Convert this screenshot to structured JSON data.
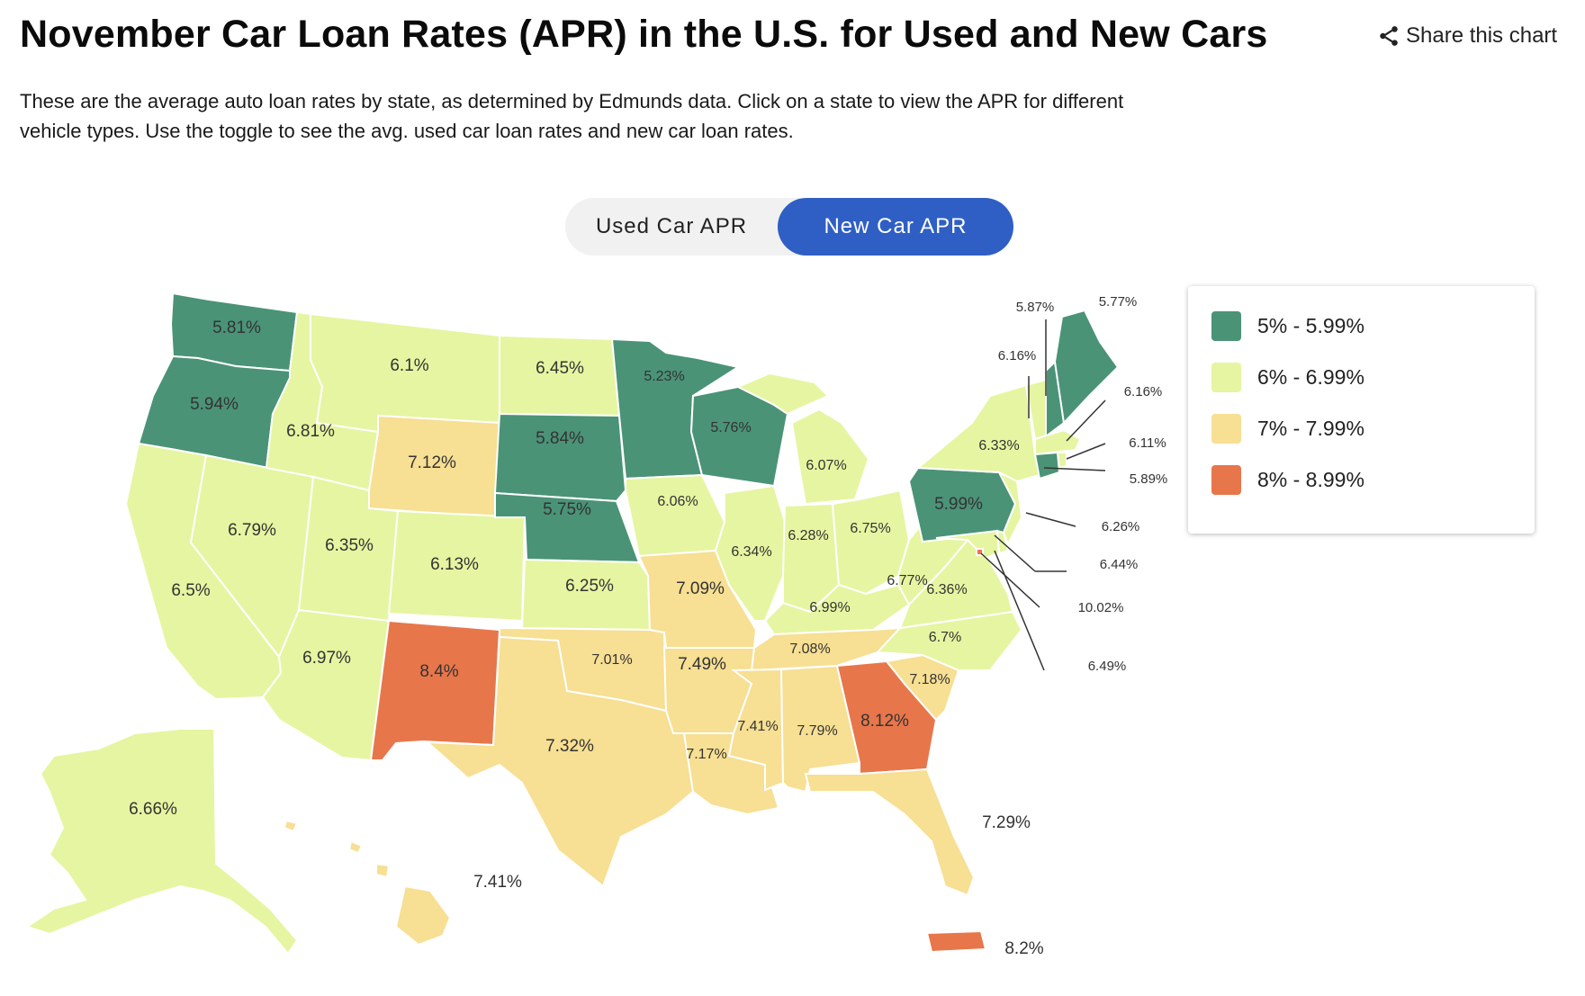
{
  "header": {
    "title": "November Car Loan Rates (APR) in the U.S. for Used and New Cars",
    "share_label": "Share this chart",
    "description": "These are the average auto loan rates by state, as determined by Edmunds data. Click on a state to view the APR for different vehicle types. Use the toggle to see the avg. used car loan rates and new car loan rates."
  },
  "toggle": {
    "used_label": "Used Car APR",
    "new_label": "New Car APR",
    "selected": "New Car APR"
  },
  "legend": {
    "items": [
      {
        "label": "5% - 5.99%",
        "color": "#4a9377"
      },
      {
        "label": "6% - 6.99%",
        "color": "#e6f5a1"
      },
      {
        "label": "7% - 7.99%",
        "color": "#f7df93"
      },
      {
        "label": "8% - 8.99%",
        "color": "#e8764b"
      }
    ]
  },
  "map_data": {
    "type": "choropleth",
    "region": "United States",
    "unit": "%",
    "rates": [
      {
        "state": "WA",
        "label": "5.81%",
        "value": 5.81
      },
      {
        "state": "OR",
        "label": "5.94%",
        "value": 5.94
      },
      {
        "state": "CA",
        "label": "6.5%",
        "value": 6.5
      },
      {
        "state": "NV",
        "label": "6.79%",
        "value": 6.79
      },
      {
        "state": "ID",
        "label": "6.81%",
        "value": 6.81
      },
      {
        "state": "MT",
        "label": "6.1%",
        "value": 6.1
      },
      {
        "state": "WY",
        "label": "7.12%",
        "value": 7.12
      },
      {
        "state": "UT",
        "label": "6.35%",
        "value": 6.35
      },
      {
        "state": "AZ",
        "label": "6.97%",
        "value": 6.97
      },
      {
        "state": "CO",
        "label": "6.13%",
        "value": 6.13
      },
      {
        "state": "NM",
        "label": "8.4%",
        "value": 8.4
      },
      {
        "state": "ND",
        "label": "6.45%",
        "value": 6.45
      },
      {
        "state": "SD",
        "label": "5.84%",
        "value": 5.84
      },
      {
        "state": "NE",
        "label": "5.75%",
        "value": 5.75
      },
      {
        "state": "KS",
        "label": "6.25%",
        "value": 6.25
      },
      {
        "state": "OK",
        "label": "7.01%",
        "value": 7.01
      },
      {
        "state": "TX",
        "label": "7.32%",
        "value": 7.32
      },
      {
        "state": "MN",
        "label": "5.23%",
        "value": 5.23
      },
      {
        "state": "IA",
        "label": "6.06%",
        "value": 6.06
      },
      {
        "state": "MO",
        "label": "7.09%",
        "value": 7.09
      },
      {
        "state": "AR",
        "label": "7.49%",
        "value": 7.49
      },
      {
        "state": "LA",
        "label": "7.17%",
        "value": 7.17
      },
      {
        "state": "WI",
        "label": "5.76%",
        "value": 5.76
      },
      {
        "state": "IL",
        "label": "6.34%",
        "value": 6.34
      },
      {
        "state": "MI",
        "label": "6.07%",
        "value": 6.07
      },
      {
        "state": "IN",
        "label": "6.28%",
        "value": 6.28
      },
      {
        "state": "OH",
        "label": "6.75%",
        "value": 6.75
      },
      {
        "state": "KY",
        "label": "6.99%",
        "value": 6.99
      },
      {
        "state": "TN",
        "label": "7.08%",
        "value": 7.08
      },
      {
        "state": "MS",
        "label": "7.41%",
        "value": 7.41
      },
      {
        "state": "AL",
        "label": "7.79%",
        "value": 7.79
      },
      {
        "state": "GA",
        "label": "8.12%",
        "value": 8.12
      },
      {
        "state": "FL",
        "label": "7.29%",
        "value": 7.29
      },
      {
        "state": "SC",
        "label": "7.18%",
        "value": 7.18
      },
      {
        "state": "NC",
        "label": "6.7%",
        "value": 6.7
      },
      {
        "state": "VA",
        "label": "6.36%",
        "value": 6.36
      },
      {
        "state": "WV",
        "label": "6.77%",
        "value": 6.77
      },
      {
        "state": "PA",
        "label": "5.99%",
        "value": 5.99
      },
      {
        "state": "NY",
        "label": "6.33%",
        "value": 6.33
      },
      {
        "state": "ME",
        "label": "5.77%",
        "value": 5.77
      },
      {
        "state": "NH",
        "label": "5.87%",
        "value": 5.87
      },
      {
        "state": "VT",
        "label": "6.16%",
        "value": 6.16
      },
      {
        "state": "MA",
        "label": "6.16%",
        "value": 6.16
      },
      {
        "state": "RI",
        "label": "6.11%",
        "value": 6.11
      },
      {
        "state": "CT",
        "label": "5.89%",
        "value": 5.89
      },
      {
        "state": "NJ",
        "label": "6.26%",
        "value": 6.26
      },
      {
        "state": "DE",
        "label": "6.44%",
        "value": 6.44
      },
      {
        "state": "DC",
        "label": "10.02%",
        "value": 10.02
      },
      {
        "state": "MD",
        "label": "6.49%",
        "value": 6.49
      },
      {
        "state": "AK",
        "label": "6.66%",
        "value": 6.66
      },
      {
        "state": "HI",
        "label": "7.41%",
        "value": 7.41
      },
      {
        "state": "PR",
        "label": "8.2%",
        "value": 8.2
      }
    ]
  }
}
